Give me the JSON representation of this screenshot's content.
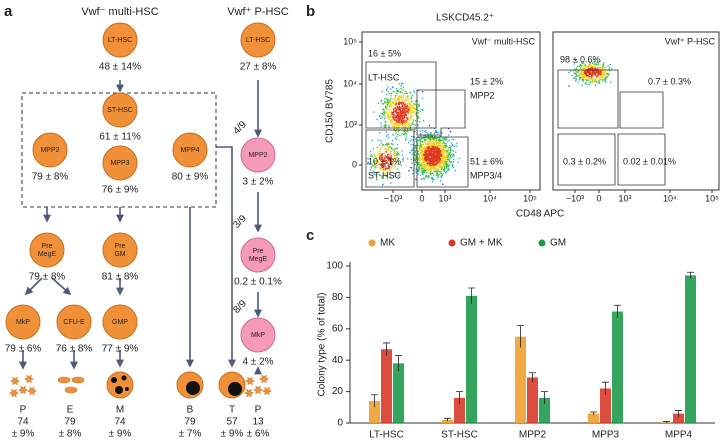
{
  "panel_a": {
    "label": "a",
    "left_title": "Vwf⁻ multi-HSC",
    "right_title": "Vwf⁺ P-HSC",
    "nodes": [
      {
        "label": [
          "LT-HSC"
        ],
        "value": "48 ± 14%"
      },
      {
        "label": [
          "ST-HSC"
        ],
        "value": "61 ± 11%"
      },
      {
        "label": [
          "MPP2"
        ],
        "value": "79 ± 8%"
      },
      {
        "label": [
          "MPP3"
        ],
        "value": "76 ± 9%"
      },
      {
        "label": [
          "MPP4"
        ],
        "value": "80 ± 9%"
      },
      {
        "label": [
          "Pre",
          "MegE"
        ],
        "value": "79 ± 8%"
      },
      {
        "label": [
          "Pre",
          "GM"
        ],
        "value": "81 ± 8%"
      },
      {
        "label": [
          "MkP"
        ],
        "value": "79 ± 6%"
      },
      {
        "label": [
          "CFU-E"
        ],
        "value": "76 ± 8%"
      },
      {
        "label": [
          "GMP"
        ],
        "value": "77 ± 9%"
      },
      {
        "label": [
          "LT-HSC"
        ],
        "value": "27 ± 8%"
      },
      {
        "label": [
          "MPP2"
        ],
        "value": "3 ± 2%"
      },
      {
        "label": [
          "Pre",
          "MegE"
        ],
        "value": "0.2 ± 0.1%"
      },
      {
        "label": [
          "MkP"
        ],
        "value": "4 ± 2%"
      }
    ],
    "fractions": [
      "4/9",
      "3/9",
      "8/9"
    ],
    "outputs": [
      {
        "label": "P",
        "value": "74",
        "error": "± 9%"
      },
      {
        "label": "E",
        "value": "79",
        "error": "± 8%"
      },
      {
        "label": "M",
        "value": "74",
        "error": "± 9%"
      },
      {
        "label": "B",
        "value": "79",
        "error": "± 7%"
      },
      {
        "label": "T",
        "value": "57",
        "error": "± 9%"
      },
      {
        "label": "P",
        "value": "13",
        "error": "± 6%"
      }
    ]
  },
  "panel_b": {
    "label": "b",
    "title": "LSKCD45.2⁺",
    "y_label": "CD150 BV785",
    "x_label": "CD48 APC",
    "plots": [
      {
        "title": "Vwf⁻ multi-HSC",
        "y_ticks": [
          "10⁵",
          "10⁴",
          "10³",
          "0"
        ],
        "x_ticks": [
          "−10³",
          "0",
          "10³",
          "10⁴",
          "10⁵"
        ],
        "gates": [
          [
            "16 ± 5%",
            "LT-HSC"
          ],
          [
            "15 ± 2%",
            "MPP2"
          ],
          [
            "10 ± 1%",
            "ST-HSC"
          ],
          [
            "51 ± 6%",
            "MPP3/4"
          ]
        ]
      },
      {
        "title": "Vwf⁺ P-HSC",
        "x_ticks": [
          "−10³",
          "0",
          "10³",
          "10⁴",
          "10⁵"
        ],
        "gates": [
          [
            "98 ± 0.6%"
          ],
          [
            "0.7 ± 0.3%"
          ],
          [
            "0.3 ± 0.2%"
          ],
          [
            "0.02 ± 0.01%"
          ]
        ]
      }
    ]
  },
  "panel_c": {
    "label": "c"
  },
  "chart_data": {
    "type": "bar",
    "y_label": "Colony type (% of total)",
    "categories": [
      "LT-HSC",
      "ST-HSC",
      "MPP2",
      "MPP3",
      "MPP4"
    ],
    "series": [
      {
        "name": "MK",
        "color": "#f0a030",
        "values": [
          14,
          2,
          55,
          6,
          0.5
        ],
        "errors": [
          4,
          1,
          7,
          1,
          0.5
        ]
      },
      {
        "name": "GM + MK",
        "color": "#d63a2a",
        "values": [
          47,
          16,
          29,
          22,
          6
        ],
        "errors": [
          4,
          4,
          3,
          4,
          2
        ]
      },
      {
        "name": "GM",
        "color": "#1f9a4a",
        "values": [
          38,
          81,
          16,
          71,
          94
        ],
        "errors": [
          5,
          5,
          4,
          4,
          2
        ]
      }
    ],
    "ylim": [
      0,
      100
    ],
    "yticks": [
      0,
      20,
      40,
      60,
      80,
      100
    ]
  }
}
